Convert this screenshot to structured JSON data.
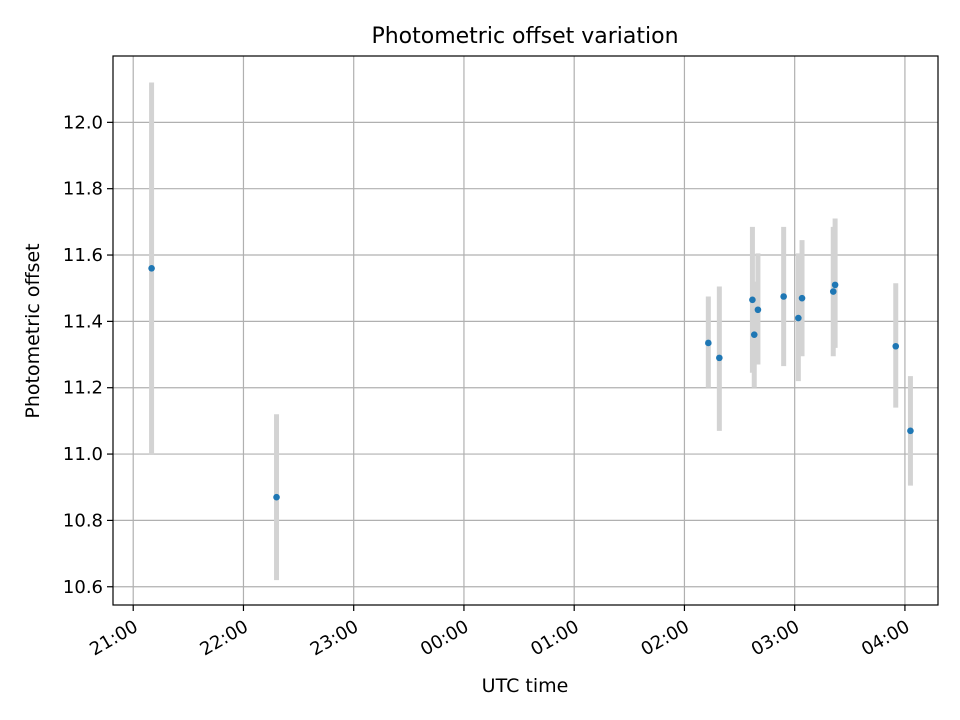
{
  "chart_data": {
    "type": "scatter",
    "title": "Photometric offset variation",
    "xlabel": "UTC time",
    "ylabel": "Photometric offset",
    "x_axis": "time",
    "xlim": [
      "20:49",
      "04:18"
    ],
    "ylim": [
      10.545,
      12.2
    ],
    "grid": true,
    "x_ticks": [
      "21:00",
      "22:00",
      "23:00",
      "00:00",
      "01:00",
      "02:00",
      "03:00",
      "04:00"
    ],
    "y_ticks": [
      "10.6",
      "10.8",
      "11.0",
      "11.2",
      "11.4",
      "11.6",
      "11.8",
      "12.0"
    ],
    "colors": {
      "marker": "#1f77b4",
      "errorbar": "#d3d3d3",
      "grid": "#b0b0b0"
    },
    "points": [
      {
        "x": "21:10",
        "y": 11.56,
        "y_err_low": 11.0,
        "y_err_high": 12.12
      },
      {
        "x": "22:18",
        "y": 10.87,
        "y_err_low": 10.62,
        "y_err_high": 11.12
      },
      {
        "x": "02:13",
        "y": 11.335,
        "y_err_low": 11.2,
        "y_err_high": 11.475
      },
      {
        "x": "02:19",
        "y": 11.29,
        "y_err_low": 11.07,
        "y_err_high": 11.505
      },
      {
        "x": "02:37",
        "y": 11.465,
        "y_err_low": 11.245,
        "y_err_high": 11.685
      },
      {
        "x": "02:38",
        "y": 11.36,
        "y_err_low": 11.2,
        "y_err_high": 11.52
      },
      {
        "x": "02:40",
        "y": 11.435,
        "y_err_low": 11.27,
        "y_err_high": 11.605
      },
      {
        "x": "02:54",
        "y": 11.475,
        "y_err_low": 11.265,
        "y_err_high": 11.685
      },
      {
        "x": "03:02",
        "y": 11.41,
        "y_err_low": 11.22,
        "y_err_high": 11.605
      },
      {
        "x": "03:04",
        "y": 11.47,
        "y_err_low": 11.295,
        "y_err_high": 11.645
      },
      {
        "x": "03:21",
        "y": 11.49,
        "y_err_low": 11.295,
        "y_err_high": 11.685
      },
      {
        "x": "03:22",
        "y": 11.51,
        "y_err_low": 11.32,
        "y_err_high": 11.71
      },
      {
        "x": "03:55",
        "y": 11.325,
        "y_err_low": 11.14,
        "y_err_high": 11.515
      },
      {
        "x": "04:03",
        "y": 11.07,
        "y_err_low": 10.905,
        "y_err_high": 11.235
      }
    ]
  }
}
